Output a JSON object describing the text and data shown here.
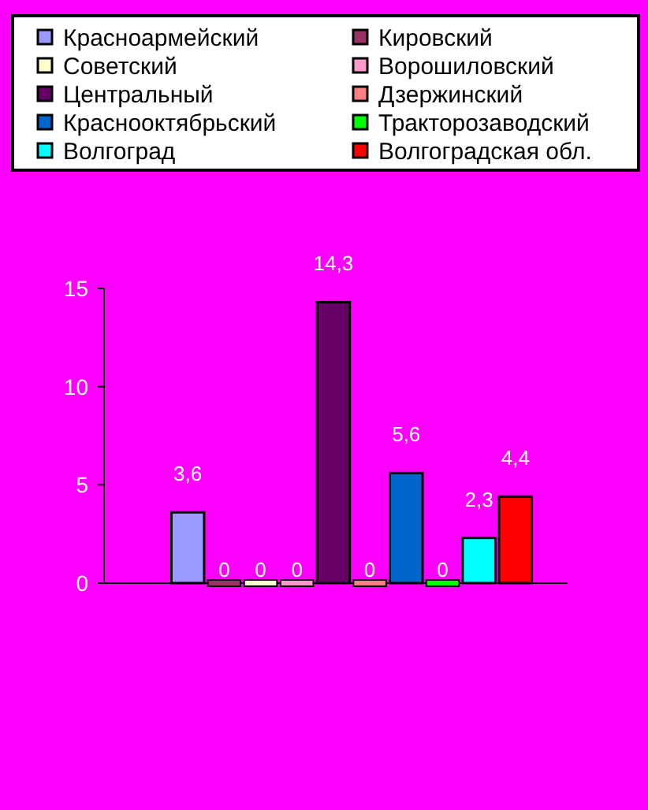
{
  "chart_data": {
    "type": "bar",
    "categories": [
      null
    ],
    "series": [
      {
        "name": "Красноармейский",
        "color": "#9999ff",
        "values": [
          3.6
        ],
        "value_labels": [
          "3,6"
        ]
      },
      {
        "name": "Кировский",
        "color": "#993366",
        "values": [
          0
        ],
        "value_labels": [
          "0"
        ]
      },
      {
        "name": "Советский",
        "color": "#ffffcc",
        "values": [
          0
        ],
        "value_labels": [
          "0"
        ]
      },
      {
        "name": "Ворошиловский",
        "color": "#ff99cc",
        "values": [
          0
        ],
        "value_labels": [
          "0"
        ]
      },
      {
        "name": "Центральный",
        "color": "#660066",
        "values": [
          14.3
        ],
        "value_labels": [
          "14,3"
        ]
      },
      {
        "name": "Дзержинский",
        "color": "#ff8080",
        "values": [
          0
        ],
        "value_labels": [
          "0"
        ]
      },
      {
        "name": "Краснооктябрьский",
        "color": "#0066cc",
        "values": [
          5.6
        ],
        "value_labels": [
          "5,6"
        ]
      },
      {
        "name": "Тракторозаводский",
        "color": "#00ff00",
        "values": [
          0
        ],
        "value_labels": [
          "0"
        ]
      },
      {
        "name": "Волгоград",
        "color": "#00ffff",
        "values": [
          2.3
        ],
        "value_labels": [
          "2,3"
        ]
      },
      {
        "name": "Волгоградская обл.",
        "color": "#ff0000",
        "values": [
          4.4
        ],
        "value_labels": [
          "4,4"
        ]
      }
    ],
    "ylim": [
      0,
      15
    ],
    "yticks": [
      0,
      5,
      10,
      15
    ],
    "grid": false,
    "legend": "top"
  }
}
